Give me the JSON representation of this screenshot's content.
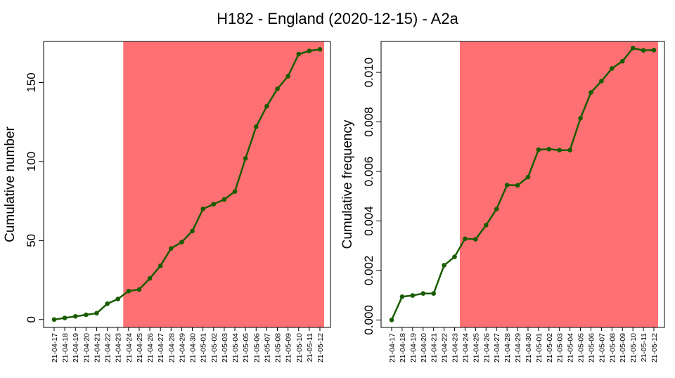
{
  "chart_data": [
    {
      "type": "line",
      "title": "H182 - England (2020-12-15) - A2a",
      "xlabel": "",
      "ylabel": "Cumulative number",
      "x": [
        "21-04-17",
        "21-04-18",
        "21-04-19",
        "21-04-20",
        "21-04-21",
        "21-04-22",
        "21-04-23",
        "21-04-24",
        "21-04-25",
        "21-04-26",
        "21-04-27",
        "21-04-28",
        "21-04-29",
        "21-04-30",
        "21-05-01",
        "21-05-02",
        "21-05-03",
        "21-05-04",
        "21-05-05",
        "21-05-06",
        "21-05-07",
        "21-05-08",
        "21-05-09",
        "21-05-10",
        "21-05-11",
        "21-05-12"
      ],
      "series": [
        {
          "values": [
            0,
            1,
            2,
            3,
            4,
            10,
            13,
            18,
            19,
            26,
            34,
            45,
            49,
            56,
            70,
            73,
            76,
            81,
            102,
            122,
            135,
            146,
            154,
            168,
            170,
            171
          ]
        }
      ],
      "yticks": [
        "0",
        "50",
        "100",
        "150"
      ],
      "ylim": [
        -5,
        176
      ],
      "highlight_from": "21-04-24",
      "grid": false,
      "colors": {
        "line": "#1a5c00",
        "highlight": "#ff7074"
      }
    },
    {
      "type": "line",
      "title": "",
      "xlabel": "",
      "ylabel": "Cumulative frequency",
      "x": [
        "21-04-17",
        "21-04-18",
        "21-04-19",
        "21-04-20",
        "21-04-21",
        "21-04-22",
        "21-04-23",
        "21-04-24",
        "21-04-25",
        "21-04-26",
        "21-04-27",
        "21-04-28",
        "21-04-29",
        "21-04-30",
        "21-05-01",
        "21-05-02",
        "21-05-03",
        "21-05-04",
        "21-05-05",
        "21-05-06",
        "21-05-07",
        "21-05-08",
        "21-05-09",
        "21-05-10",
        "21-05-11",
        "21-05-12"
      ],
      "series": [
        {
          "values": [
            0.0,
            0.00094,
            0.00099,
            0.00107,
            0.00107,
            0.00221,
            0.00255,
            0.00328,
            0.00326,
            0.00383,
            0.00448,
            0.00545,
            0.00544,
            0.00577,
            0.00688,
            0.0069,
            0.00686,
            0.00686,
            0.00815,
            0.00919,
            0.00965,
            0.01016,
            0.01045,
            0.01098,
            0.01089,
            0.0109
          ]
        }
      ],
      "yticks": [
        "0.000",
        "0.002",
        "0.004",
        "0.006",
        "0.008",
        "0.010"
      ],
      "ylim": [
        -0.0003,
        0.01125
      ],
      "highlight_from": "21-04-24",
      "grid": false,
      "colors": {
        "line": "#1a5c00",
        "highlight": "#ff7074"
      }
    }
  ]
}
